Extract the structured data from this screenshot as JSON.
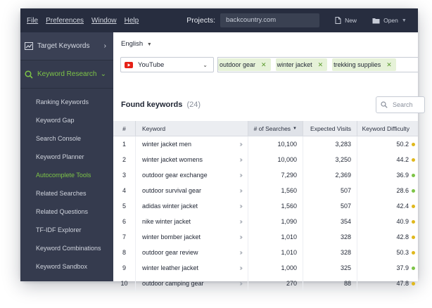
{
  "menu": {
    "file": "File",
    "preferences": "Preferences",
    "window": "Window",
    "help": "Help",
    "projects_label": "Projects:",
    "project_value": "backcountry.com",
    "new_label": "New",
    "open_label": "Open"
  },
  "sidebar": {
    "sections": [
      {
        "label": "Target Keywords",
        "icon": "chart-line-icon"
      },
      {
        "label": "Keyword Research",
        "icon": "search-icon"
      }
    ],
    "items": [
      {
        "label": "Ranking Keywords"
      },
      {
        "label": "Keyword Gap"
      },
      {
        "label": "Search Console"
      },
      {
        "label": "Keyword Planner"
      },
      {
        "label": "Autocomplete Tools"
      },
      {
        "label": "Related Searches"
      },
      {
        "label": "Related Questions"
      },
      {
        "label": "TF-IDF Explorer"
      },
      {
        "label": "Keyword Combinations"
      },
      {
        "label": "Keyword Sandbox"
      }
    ],
    "current_item": "Autocomplete Tools"
  },
  "main": {
    "language": "English",
    "source": "YouTube",
    "tags": [
      "outdoor gear",
      "winter jacket",
      "trekking supplies"
    ],
    "found_title": "Found keywords",
    "found_count": "(24)",
    "search_placeholder": "Search"
  },
  "table": {
    "columns": {
      "num": "#",
      "keyword": "Keyword",
      "searches": "# of Searches",
      "visits": "Expected Visits",
      "difficulty": "Keyword Difficulty"
    },
    "rows": [
      {
        "n": "1",
        "kw": "winter jacket men",
        "searches": "10,100",
        "visits": "3,283",
        "diff": "50.2",
        "color": "#e0b81c"
      },
      {
        "n": "2",
        "kw": "winter jacket womens",
        "searches": "10,000",
        "visits": "3,250",
        "diff": "44.2",
        "color": "#e0b81c"
      },
      {
        "n": "3",
        "kw": "outdoor gear exchange",
        "searches": "7,290",
        "visits": "2,369",
        "diff": "36.9",
        "color": "#7dc447"
      },
      {
        "n": "4",
        "kw": "outdoor survival gear",
        "searches": "1,560",
        "visits": "507",
        "diff": "28.6",
        "color": "#7dc447"
      },
      {
        "n": "5",
        "kw": "adidas winter jacket",
        "searches": "1,560",
        "visits": "507",
        "diff": "42.4",
        "color": "#e0b81c"
      },
      {
        "n": "6",
        "kw": "nike winter jacket",
        "searches": "1,090",
        "visits": "354",
        "diff": "40.9",
        "color": "#e0b81c"
      },
      {
        "n": "7",
        "kw": "winter bomber jacket",
        "searches": "1,010",
        "visits": "328",
        "diff": "42.8",
        "color": "#e0b81c"
      },
      {
        "n": "8",
        "kw": "outdoor gear review",
        "searches": "1,010",
        "visits": "328",
        "diff": "50.3",
        "color": "#e0b81c"
      },
      {
        "n": "9",
        "kw": "winter leather jacket",
        "searches": "1,000",
        "visits": "325",
        "diff": "37.9",
        "color": "#7dc447"
      },
      {
        "n": "10",
        "kw": "outdoor camping gear",
        "searches": "270",
        "visits": "88",
        "diff": "47.8",
        "color": "#e0b81c"
      }
    ]
  },
  "colors": {
    "accent_green": "#7dc447",
    "sidebar_bg": "#353b4e",
    "menubar_bg": "#272d3f",
    "tag_bg": "#e6f2d8",
    "youtube_red": "#e62117"
  }
}
